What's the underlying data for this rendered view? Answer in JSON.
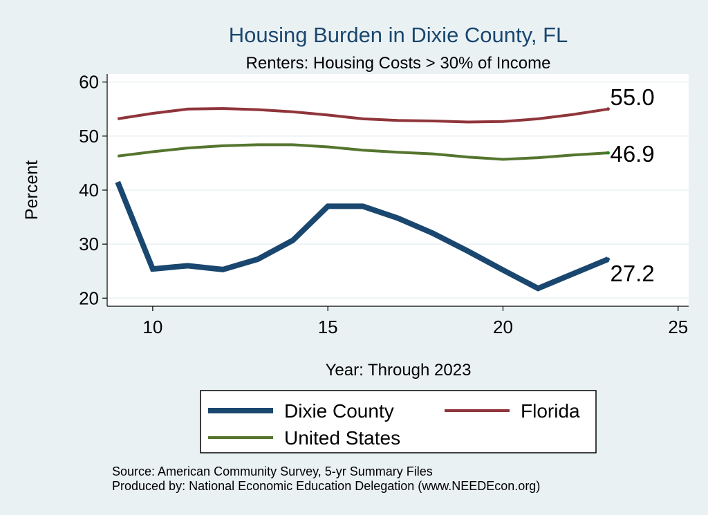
{
  "chart_data": {
    "type": "line",
    "title": "Housing Burden in Dixie County, FL",
    "subtitle": "Renters: Housing Costs > 30% of Income",
    "xlabel": "Year: Through 2023",
    "ylabel": "Percent",
    "xlim": [
      8.7,
      25.3
    ],
    "ylim": [
      18.5,
      61.5
    ],
    "x_ticks": [
      10,
      15,
      20,
      25
    ],
    "y_ticks": [
      20,
      30,
      40,
      50,
      60
    ],
    "grid": "horizontal",
    "legend_placement": "bottom",
    "x": [
      9,
      10,
      11,
      12,
      13,
      14,
      15,
      16,
      17,
      18,
      19,
      20,
      21,
      22,
      23
    ],
    "series": [
      {
        "name": "Dixie County",
        "color": "#1a476f",
        "values": [
          41.5,
          25.4,
          26.0,
          25.3,
          27.2,
          30.7,
          37.0,
          37.0,
          34.8,
          32.0,
          28.7,
          25.2,
          21.8,
          24.5,
          27.2
        ],
        "end_label": "27.2"
      },
      {
        "name": "Florida",
        "color": "#90353b",
        "values": [
          53.2,
          54.2,
          55.0,
          55.1,
          54.9,
          54.5,
          53.9,
          53.2,
          52.9,
          52.8,
          52.6,
          52.7,
          53.2,
          54.0,
          55.0
        ],
        "end_label": "55.0"
      },
      {
        "name": "United States",
        "color": "#55752f",
        "values": [
          46.3,
          47.1,
          47.8,
          48.2,
          48.4,
          48.4,
          48.0,
          47.4,
          47.0,
          46.7,
          46.1,
          45.7,
          46.0,
          46.5,
          46.9
        ],
        "end_label": "46.9"
      }
    ],
    "source_notes": [
      "Source: American Community Survey, 5-yr Summary Files",
      "Produced by: National Economic Education Delegation (www.NEEDEcon.org)"
    ]
  }
}
